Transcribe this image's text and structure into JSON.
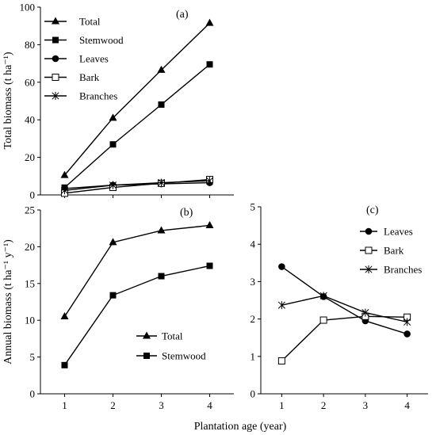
{
  "chart_data": [
    {
      "panel_label": "(a)",
      "type": "line",
      "x": [
        1,
        2,
        3,
        4
      ],
      "ylabel": "Total biomass (t ha⁻¹)",
      "ylim": [
        0,
        100
      ],
      "yticks": [
        0,
        20,
        40,
        60,
        80,
        100
      ],
      "xticks": [],
      "legend_position": "top-left",
      "series": [
        {
          "name": "Total",
          "marker": "triangle",
          "values": [
            10.5,
            41,
            66.5,
            91.5
          ]
        },
        {
          "name": "Stemwood",
          "marker": "square",
          "values": [
            3.9,
            26.9,
            48.1,
            69.5
          ]
        },
        {
          "name": "Leaves",
          "marker": "circle",
          "values": [
            3.4,
            5.2,
            5.9,
            6.5
          ]
        },
        {
          "name": "Bark",
          "marker": "open-square",
          "values": [
            0.9,
            4,
            6.2,
            8.2
          ]
        },
        {
          "name": "Branches",
          "marker": "star",
          "values": [
            2.4,
            5.2,
            6.5,
            7.5
          ]
        }
      ]
    },
    {
      "panel_label": "(b)",
      "type": "line",
      "x": [
        1,
        2,
        3,
        4
      ],
      "ylabel": "Annual biomass (t ha⁻¹ y⁻¹)",
      "ylim": [
        0,
        25
      ],
      "yticks": [
        0,
        5,
        10,
        15,
        20,
        25
      ],
      "xticks": [
        "1",
        "2",
        "3",
        "4"
      ],
      "legend_position": "lower-right",
      "series": [
        {
          "name": "Total",
          "marker": "triangle",
          "values": [
            10.5,
            20.6,
            22.2,
            22.9
          ]
        },
        {
          "name": "Stemwood",
          "marker": "square",
          "values": [
            3.9,
            13.4,
            16.0,
            17.4
          ]
        }
      ]
    },
    {
      "panel_label": "(c)",
      "type": "line",
      "x": [
        1,
        2,
        3,
        4
      ],
      "ylabel": "",
      "ylim": [
        0,
        5
      ],
      "yticks": [
        0,
        1,
        2,
        3,
        4,
        5
      ],
      "xticks": [
        "1",
        "2",
        "3",
        "4"
      ],
      "legend_position": "top-right",
      "series": [
        {
          "name": "Leaves",
          "marker": "circle",
          "values": [
            3.4,
            2.6,
            1.95,
            1.6
          ]
        },
        {
          "name": "Bark",
          "marker": "open-square",
          "values": [
            0.88,
            1.97,
            2.07,
            2.05
          ]
        },
        {
          "name": "Branches",
          "marker": "star",
          "values": [
            2.37,
            2.62,
            2.17,
            1.92
          ]
        }
      ]
    }
  ],
  "shared_xlabel": "Plantation age (year)",
  "colors": {
    "line": "#000000",
    "background": "#ffffff"
  }
}
